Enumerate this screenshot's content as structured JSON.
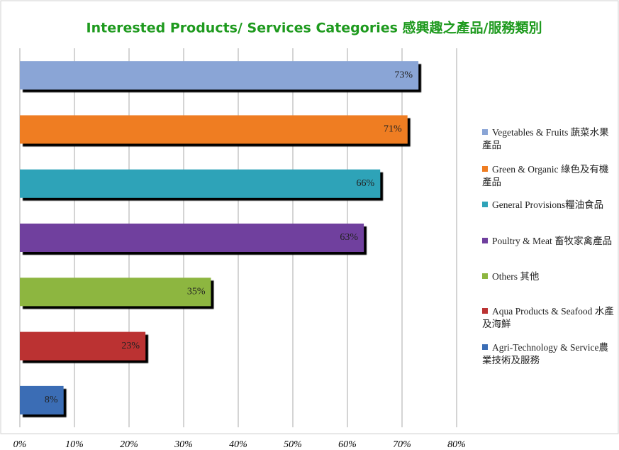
{
  "chart_data": {
    "type": "bar",
    "orientation": "horizontal",
    "title": "Interested Products/ Services Categories 感興趣之產品/服務類別",
    "categories": [
      "Vegetables & Fruits 蔬菜水果產品",
      "Green & Organic 綠色及有機產品",
      "General Provisions糧油食品",
      "Poultry & Meat 畜牧家禽產品",
      "Others 其他",
      "Aqua Products & Seafood 水產及海鮮",
      "Agri-Technology & Service農業技術及服務"
    ],
    "values": [
      73,
      71,
      66,
      63,
      35,
      23,
      8
    ],
    "value_labels": [
      "73%",
      "71%",
      "66%",
      "63%",
      "35%",
      "23%",
      "8%"
    ],
    "colors": [
      "#8aa5d6",
      "#ef7d22",
      "#2fa3b8",
      "#6f3f9e",
      "#8db640",
      "#bb3333",
      "#3a6db5"
    ],
    "xlim": [
      0,
      80
    ],
    "xticks": [
      {
        "value": 0,
        "label": "0%"
      },
      {
        "value": 10,
        "label": "10%"
      },
      {
        "value": 20,
        "label": "20%"
      },
      {
        "value": 30,
        "label": "30%"
      },
      {
        "value": 40,
        "label": "40%"
      },
      {
        "value": 50,
        "label": "50%"
      },
      {
        "value": 60,
        "label": "60%"
      },
      {
        "value": 70,
        "label": "70%"
      },
      {
        "value": 80,
        "label": "80%"
      }
    ],
    "grid": true,
    "legend": "right"
  }
}
